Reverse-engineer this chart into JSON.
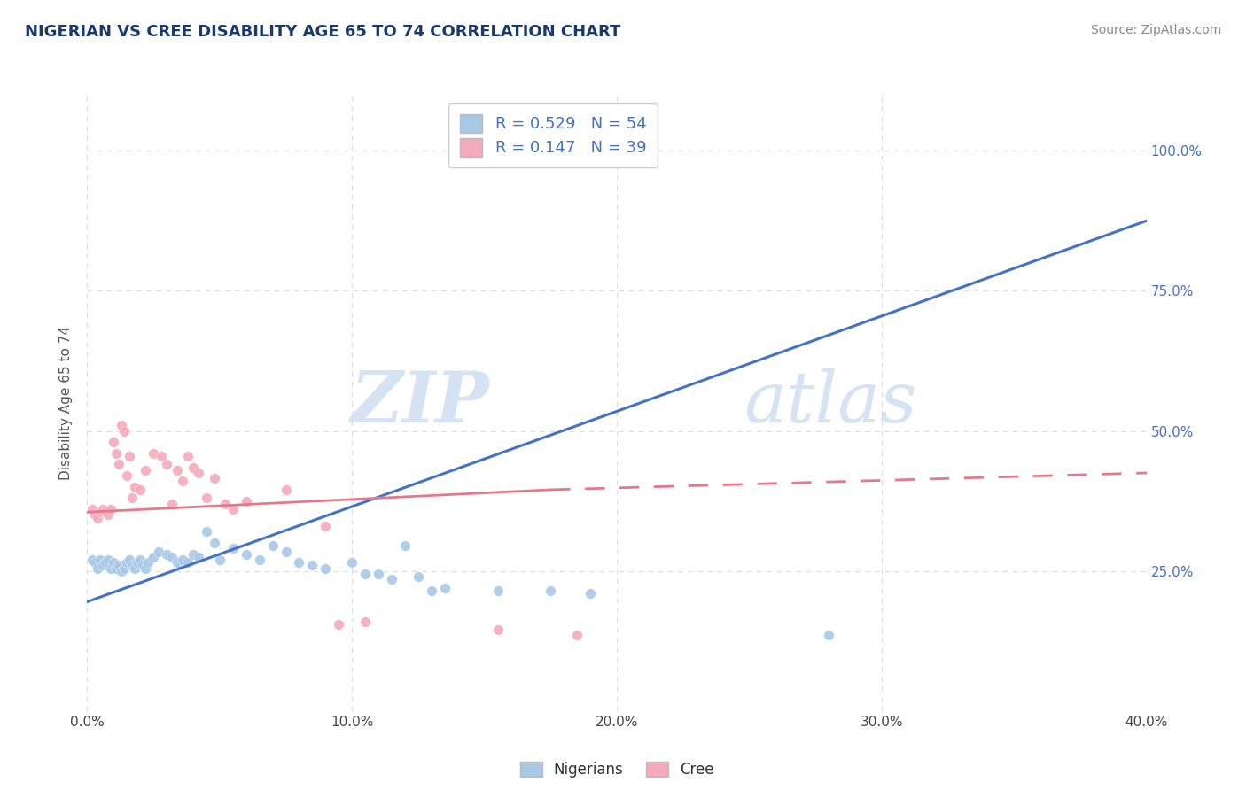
{
  "title": "NIGERIAN VS CREE DISABILITY AGE 65 TO 74 CORRELATION CHART",
  "source_text": "Source: ZipAtlas.com",
  "ylabel": "Disability Age 65 to 74",
  "x_min": 0.0,
  "x_max": 0.4,
  "y_min": 0.0,
  "y_max": 1.1,
  "watermark_zip": "ZIP",
  "watermark_atlas": "atlas",
  "blue_label": "Nigerians",
  "pink_label": "Cree",
  "blue_R": 0.529,
  "blue_N": 54,
  "pink_R": 0.147,
  "pink_N": 39,
  "blue_color": "#A8C8E8",
  "pink_color": "#F4AABB",
  "blue_line_color": "#4472C4",
  "pink_line_color": "#E8778A",
  "blue_scatter": [
    [
      0.002,
      0.27
    ],
    [
      0.003,
      0.265
    ],
    [
      0.004,
      0.255
    ],
    [
      0.005,
      0.27
    ],
    [
      0.006,
      0.26
    ],
    [
      0.007,
      0.265
    ],
    [
      0.008,
      0.27
    ],
    [
      0.009,
      0.255
    ],
    [
      0.01,
      0.265
    ],
    [
      0.011,
      0.255
    ],
    [
      0.012,
      0.26
    ],
    [
      0.013,
      0.25
    ],
    [
      0.014,
      0.255
    ],
    [
      0.015,
      0.265
    ],
    [
      0.016,
      0.27
    ],
    [
      0.017,
      0.26
    ],
    [
      0.018,
      0.255
    ],
    [
      0.019,
      0.265
    ],
    [
      0.02,
      0.27
    ],
    [
      0.021,
      0.26
    ],
    [
      0.022,
      0.255
    ],
    [
      0.023,
      0.265
    ],
    [
      0.025,
      0.275
    ],
    [
      0.027,
      0.285
    ],
    [
      0.03,
      0.28
    ],
    [
      0.032,
      0.275
    ],
    [
      0.034,
      0.265
    ],
    [
      0.036,
      0.27
    ],
    [
      0.038,
      0.265
    ],
    [
      0.04,
      0.28
    ],
    [
      0.042,
      0.275
    ],
    [
      0.045,
      0.32
    ],
    [
      0.048,
      0.3
    ],
    [
      0.05,
      0.27
    ],
    [
      0.055,
      0.29
    ],
    [
      0.06,
      0.28
    ],
    [
      0.065,
      0.27
    ],
    [
      0.07,
      0.295
    ],
    [
      0.075,
      0.285
    ],
    [
      0.08,
      0.265
    ],
    [
      0.085,
      0.26
    ],
    [
      0.09,
      0.255
    ],
    [
      0.1,
      0.265
    ],
    [
      0.105,
      0.245
    ],
    [
      0.11,
      0.245
    ],
    [
      0.115,
      0.235
    ],
    [
      0.12,
      0.295
    ],
    [
      0.125,
      0.24
    ],
    [
      0.13,
      0.215
    ],
    [
      0.135,
      0.22
    ],
    [
      0.155,
      0.215
    ],
    [
      0.175,
      0.215
    ],
    [
      0.19,
      0.21
    ],
    [
      0.28,
      0.135
    ]
  ],
  "pink_scatter": [
    [
      0.002,
      0.36
    ],
    [
      0.003,
      0.35
    ],
    [
      0.004,
      0.345
    ],
    [
      0.005,
      0.355
    ],
    [
      0.006,
      0.36
    ],
    [
      0.007,
      0.355
    ],
    [
      0.008,
      0.35
    ],
    [
      0.009,
      0.36
    ],
    [
      0.01,
      0.48
    ],
    [
      0.011,
      0.46
    ],
    [
      0.012,
      0.44
    ],
    [
      0.013,
      0.51
    ],
    [
      0.014,
      0.5
    ],
    [
      0.015,
      0.42
    ],
    [
      0.016,
      0.455
    ],
    [
      0.017,
      0.38
    ],
    [
      0.018,
      0.4
    ],
    [
      0.02,
      0.395
    ],
    [
      0.022,
      0.43
    ],
    [
      0.025,
      0.46
    ],
    [
      0.028,
      0.455
    ],
    [
      0.03,
      0.44
    ],
    [
      0.032,
      0.37
    ],
    [
      0.034,
      0.43
    ],
    [
      0.036,
      0.41
    ],
    [
      0.038,
      0.455
    ],
    [
      0.04,
      0.435
    ],
    [
      0.042,
      0.425
    ],
    [
      0.045,
      0.38
    ],
    [
      0.048,
      0.415
    ],
    [
      0.052,
      0.37
    ],
    [
      0.055,
      0.36
    ],
    [
      0.06,
      0.375
    ],
    [
      0.075,
      0.395
    ],
    [
      0.09,
      0.33
    ],
    [
      0.095,
      0.155
    ],
    [
      0.105,
      0.16
    ],
    [
      0.155,
      0.145
    ],
    [
      0.185,
      0.135
    ]
  ],
  "blue_line_points": [
    [
      0.0,
      0.195
    ],
    [
      0.4,
      0.875
    ]
  ],
  "pink_line_solid": [
    [
      0.0,
      0.355
    ],
    [
      0.175,
      0.395
    ]
  ],
  "pink_line_dashed": [
    [
      0.175,
      0.395
    ],
    [
      0.55,
      0.445
    ]
  ],
  "y_tick_labels_right": [
    "25.0%",
    "50.0%",
    "75.0%",
    "100.0%"
  ],
  "y_tick_values": [
    0.25,
    0.5,
    0.75,
    1.0
  ],
  "x_tick_labels": [
    "0.0%",
    "10.0%",
    "20.0%",
    "30.0%",
    "40.0%"
  ],
  "x_tick_values": [
    0.0,
    0.1,
    0.2,
    0.3,
    0.4
  ],
  "grid_color": "#E0E0E0",
  "grid_dash_color": "#DDDDDD",
  "background_color": "#FFFFFF",
  "title_color": "#1a3a6b",
  "title_fontsize": 13,
  "axis_label_color": "#555555",
  "source_color": "#888888",
  "right_tick_color": "#4472C4"
}
